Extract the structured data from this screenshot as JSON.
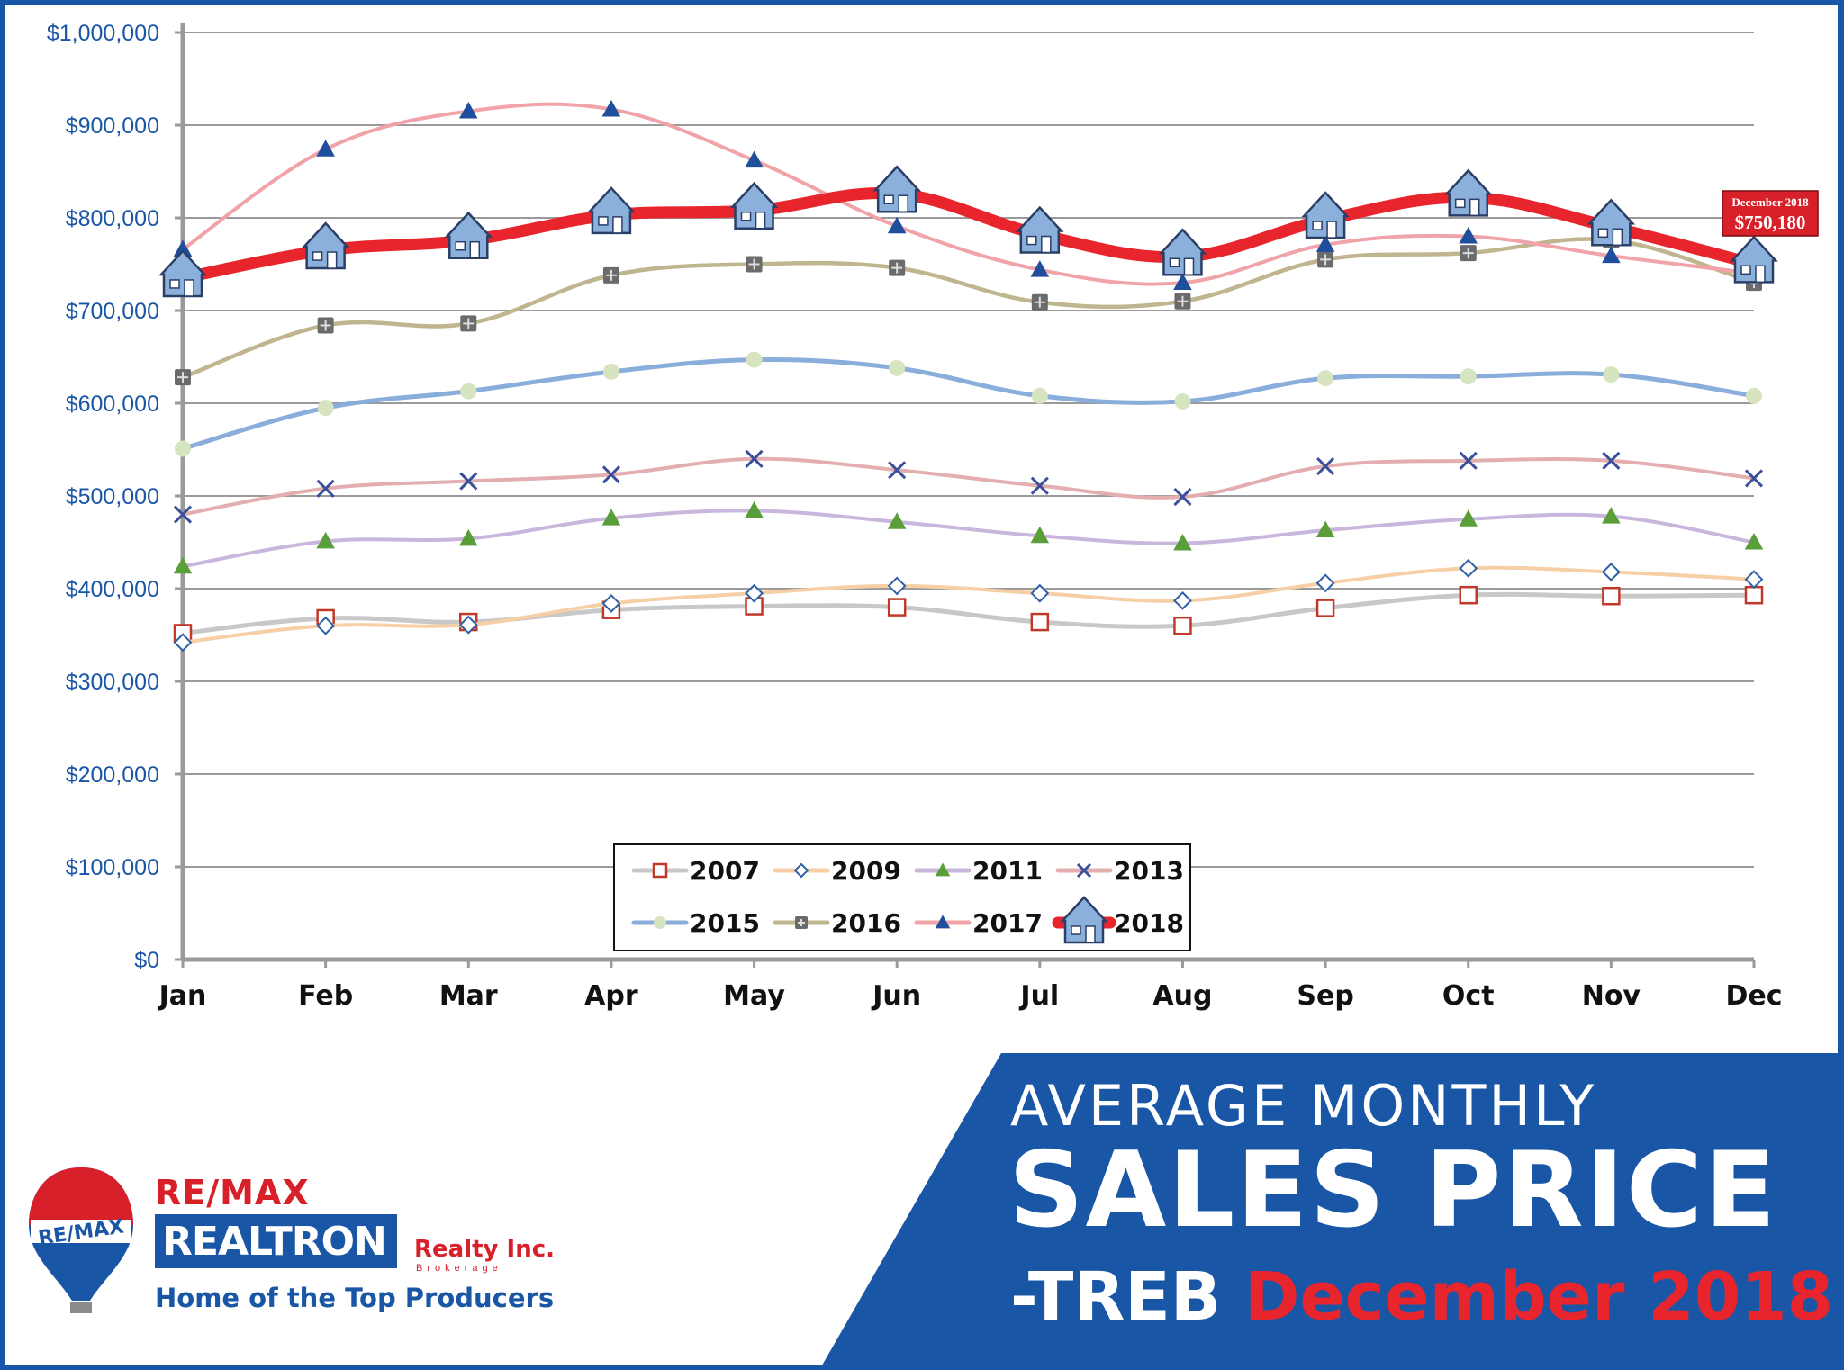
{
  "chart_data": {
    "type": "line",
    "categories": [
      "Jan",
      "Feb",
      "Mar",
      "Apr",
      "May",
      "Jun",
      "Jul",
      "Aug",
      "Sep",
      "Oct",
      "Nov",
      "Dec"
    ],
    "y_ticks": [
      "$0",
      "$100,000",
      "$200,000",
      "$300,000",
      "$400,000",
      "$500,000",
      "$600,000",
      "$700,000",
      "$800,000",
      "$900,000",
      "$1,000,000"
    ],
    "ylim": [
      0,
      1000000
    ],
    "grid": true,
    "legend_position": "bottom-center",
    "series": [
      {
        "name": "2007",
        "color": "#c8c8c8",
        "marker": "square",
        "marker_color": "#c0392b",
        "values": [
          352000,
          368000,
          364000,
          377000,
          381000,
          380000,
          364000,
          360000,
          379000,
          393000,
          392000,
          393000
        ]
      },
      {
        "name": "2009",
        "color": "#f7cfa6",
        "marker": "diamond",
        "marker_color": "#2e5fa8",
        "values": [
          342000,
          360000,
          361000,
          384000,
          395000,
          403000,
          395000,
          387000,
          406000,
          422000,
          418000,
          410000
        ]
      },
      {
        "name": "2011",
        "color": "#c9b6dc",
        "marker": "triangle",
        "marker_color": "#5a9e3a",
        "values": [
          424000,
          451000,
          454000,
          476000,
          484000,
          472000,
          457000,
          449000,
          463000,
          475000,
          478000,
          450000
        ]
      },
      {
        "name": "2013",
        "color": "#e3aeb0",
        "marker": "x",
        "marker_color": "#3b4f9a",
        "values": [
          480000,
          508000,
          516000,
          523000,
          540000,
          528000,
          511000,
          499000,
          532000,
          538000,
          538000,
          519000
        ]
      },
      {
        "name": "2015",
        "color": "#8aaedb",
        "marker": "circle",
        "marker_color": "#d7e4c0",
        "values": [
          551000,
          595000,
          613000,
          634000,
          647000,
          638000,
          608000,
          602000,
          627000,
          629000,
          631000,
          608000
        ]
      },
      {
        "name": "2016",
        "color": "#bfb58e",
        "marker": "plus-square",
        "marker_color": "#6b6b6b",
        "values": [
          628000,
          684000,
          686000,
          738000,
          750000,
          746000,
          709000,
          710000,
          755000,
          762000,
          776000,
          730000
        ]
      },
      {
        "name": "2017",
        "color": "#f0a3a8",
        "marker": "triangle",
        "marker_color": "#1f4e9c",
        "values": [
          766000,
          874000,
          915000,
          917000,
          862000,
          791000,
          744000,
          730000,
          771000,
          780000,
          759000,
          740000
        ]
      },
      {
        "name": "2018",
        "color": "#e8242c",
        "marker": "house",
        "marker_color": "#8bb0dc",
        "values": [
          735000,
          765000,
          776000,
          803000,
          808000,
          826000,
          782000,
          758000,
          798000,
          822000,
          790000,
          750180
        ]
      }
    ],
    "callout": {
      "label": "December 2018",
      "value": "$750,180"
    }
  },
  "logo": {
    "remax_text": "RE/MAX",
    "balloon_text": "RE/MAX",
    "brand": "REALTRON",
    "realty": "Realty Inc.",
    "brokerage": "Brokerage",
    "tagline": "Home of the Top Producers"
  },
  "banner": {
    "line1": "AVERAGE MONTHLY",
    "line2": "SALES PRICE",
    "line3_white": "-TREB",
    "line3_red": "December 2018",
    "color": "#1a56a6"
  }
}
